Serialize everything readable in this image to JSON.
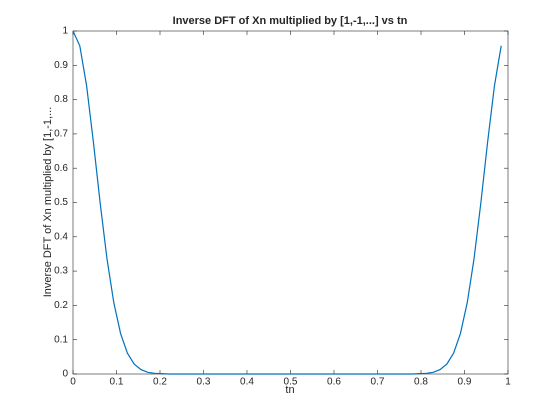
{
  "chart_data": {
    "type": "line",
    "title": "Inverse DFT of Xn multiplied by [1,-1,...] vs tn",
    "xlabel": "tn",
    "ylabel": "Inverse DFT of Xn multiplied by [1,-1,...",
    "x": [
      0,
      0.0156,
      0.0313,
      0.0469,
      0.0625,
      0.0781,
      0.0938,
      0.1094,
      0.125,
      0.1406,
      0.1563,
      0.1719,
      0.1875,
      0.2031,
      0.2188,
      0.2344,
      0.25,
      0.2656,
      0.2813,
      0.2969,
      0.3125,
      0.3281,
      0.3438,
      0.3594,
      0.375,
      0.3906,
      0.4063,
      0.4219,
      0.4375,
      0.4531,
      0.4688,
      0.4844,
      0.5,
      0.5156,
      0.5313,
      0.5469,
      0.5625,
      0.5781,
      0.5938,
      0.6094,
      0.625,
      0.6406,
      0.6563,
      0.6719,
      0.6875,
      0.7031,
      0.7188,
      0.7344,
      0.75,
      0.7656,
      0.7813,
      0.7969,
      0.8125,
      0.8281,
      0.8438,
      0.8594,
      0.875,
      0.8906,
      0.9063,
      0.9219,
      0.9375,
      0.9531,
      0.9688,
      0.9844
    ],
    "values": [
      1,
      0.957,
      0.84,
      0.676,
      0.498,
      0.336,
      0.208,
      0.118,
      0.061,
      0.029,
      0.013,
      0.005,
      0.002,
      0.001,
      0,
      0,
      0,
      0,
      0,
      0,
      0,
      0,
      0,
      0,
      0,
      0,
      0,
      0,
      0,
      0,
      0,
      0,
      0,
      0,
      0,
      0,
      0,
      0,
      0,
      0,
      0,
      0,
      0,
      0,
      0,
      0,
      0,
      0,
      0,
      0,
      0,
      0.001,
      0.002,
      0.005,
      0.013,
      0.029,
      0.061,
      0.118,
      0.208,
      0.336,
      0.498,
      0.676,
      0.84,
      0.957
    ],
    "color": "#0072bd",
    "xlim": [
      0,
      1
    ],
    "xticks": [
      0,
      0.1,
      0.2,
      0.3,
      0.4,
      0.5,
      0.6,
      0.7,
      0.8,
      0.9,
      1
    ],
    "ylim": [
      0,
      1
    ],
    "yticks": [
      0,
      0.1,
      0.2,
      0.3,
      0.4,
      0.5,
      0.6,
      0.7,
      0.8,
      0.9,
      1
    ],
    "grid": false
  }
}
